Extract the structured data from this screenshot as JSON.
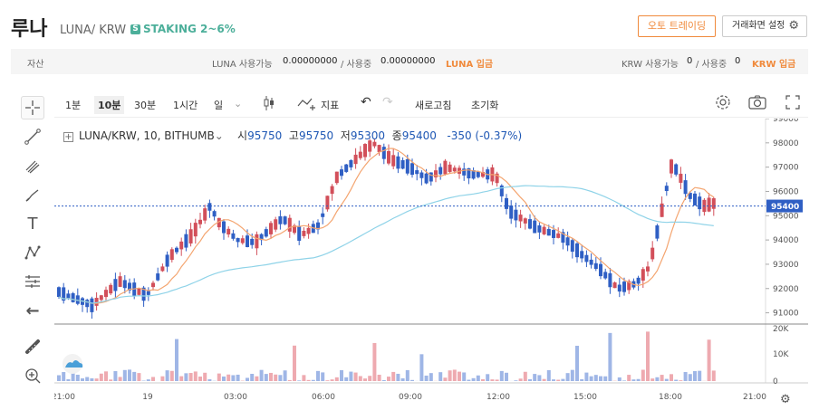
{
  "header": {
    "title": "루나",
    "pair": "LUNA/ KRW",
    "staking_badge": "S",
    "staking": "STAKING 2~6%",
    "auto_trading": "오토 트레이딩",
    "settings": "거래화면 설정"
  },
  "assets": {
    "label": "자산",
    "luna_available_label": "LUNA 사용가능",
    "luna_available": "0.00000000",
    "luna_using_label": "/ 사용중",
    "luna_using": "0.00000000",
    "luna_deposit": "LUNA 입금",
    "krw_available_label": "KRW 사용가능",
    "krw_available": "0",
    "krw_using_label": "/ 사용중",
    "krw_using": "0",
    "krw_deposit": "KRW 입금"
  },
  "toolbar": {
    "intervals": [
      "1분",
      "10분",
      "30분",
      "1시간",
      "일"
    ],
    "selected_interval": "10분",
    "indicator": "지표",
    "refresh": "새로고침",
    "reset": "초기화"
  },
  "legend": {
    "symbol": "LUNA/KRW, 10, BITHUMB",
    "open_label": "시",
    "open": "95750",
    "high_label": "고",
    "high": "95750",
    "low_label": "저",
    "low": "95300",
    "close_label": "종",
    "close": "95400",
    "change": "-350 (-0.37%)"
  },
  "colors": {
    "up": "#d24f5a",
    "down": "#2f5fc4",
    "ma_short": "#f4a570",
    "ma_long": "#8fd3e8",
    "price_line": "#2f5fc4"
  },
  "chart_data": {
    "type": "candlestick",
    "price_axis": [
      99000,
      98000,
      97000,
      96000,
      95000,
      94000,
      93000,
      92000,
      91000
    ],
    "current_price": "95400",
    "volume_axis": [
      "20K",
      "10K",
      "0"
    ],
    "time_labels": [
      "21:00",
      "19",
      "03:00",
      "06:00",
      "09:00",
      "12:00",
      "15:00",
      "18:00",
      "21:00"
    ],
    "ylim": [
      90500,
      99000
    ]
  }
}
